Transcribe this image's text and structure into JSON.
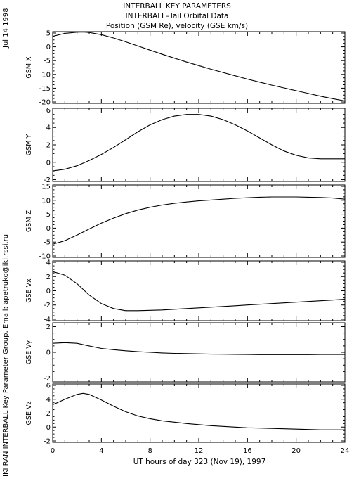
{
  "title_lines": [
    "INTERBALL KEY PARAMETERS",
    "INTERBALL–Tail Orbital Data",
    "Position (GSM Re), velocity (GSE km/s)"
  ],
  "side_date": "Jul 14 1998",
  "side_credit": "IKI RAN INTERBALL Key Parameter Group, Email: apetruko@iki.rssi.ru",
  "chart_data": {
    "type": "line",
    "xlabel": "UT hours of day 323 (Nov 19), 1997",
    "xlim": [
      0,
      24
    ],
    "x_ticks": [
      0,
      4,
      8,
      12,
      16,
      20,
      24
    ],
    "panels": [
      {
        "ylabel": "GSM X",
        "ylim": [
          -20.5,
          5.5
        ],
        "y_ticks": [
          5,
          0,
          -5,
          -10,
          -15,
          -20
        ],
        "series": [
          {
            "x": [
              0,
              1,
              2,
              2.5,
              3,
              4,
              5,
              6,
              7,
              8,
              9,
              10,
              11,
              12,
              13,
              14,
              15,
              16,
              17,
              18,
              19,
              20,
              21,
              22,
              23,
              24
            ],
            "y": [
              3.8,
              4.9,
              5.3,
              5.35,
              5.2,
              4.4,
              3.2,
              1.8,
              0.3,
              -1.2,
              -2.7,
              -4.1,
              -5.5,
              -6.8,
              -8.1,
              -9.3,
              -10.5,
              -11.7,
              -12.8,
              -13.9,
              -14.9,
              -15.9,
              -16.9,
              -17.9,
              -18.8,
              -19.6
            ]
          }
        ]
      },
      {
        "ylabel": "GSM Y",
        "ylim": [
          -2.2,
          6.2
        ],
        "y_ticks": [
          6,
          4,
          2,
          0,
          -2
        ],
        "series": [
          {
            "x": [
              0,
              1,
              2,
              3,
              4,
              5,
              6,
              7,
              8,
              9,
              10,
              11,
              12,
              13,
              14,
              15,
              16,
              17,
              18,
              19,
              20,
              21,
              22,
              23,
              24
            ],
            "y": [
              -1.0,
              -0.8,
              -0.4,
              0.2,
              0.9,
              1.7,
              2.6,
              3.5,
              4.3,
              4.9,
              5.3,
              5.5,
              5.5,
              5.3,
              4.9,
              4.3,
              3.6,
              2.8,
              2.0,
              1.3,
              0.8,
              0.5,
              0.4,
              0.4,
              0.4
            ]
          }
        ]
      },
      {
        "ylabel": "GSM Z",
        "ylim": [
          -10.5,
          15.5
        ],
        "y_ticks": [
          15,
          10,
          5,
          0,
          -5,
          -10
        ],
        "series": [
          {
            "x": [
              0,
              1,
              2,
              3,
              4,
              5,
              6,
              7,
              8,
              9,
              10,
              11,
              12,
              13,
              14,
              15,
              16,
              17,
              18,
              19,
              20,
              21,
              22,
              23,
              24
            ],
            "y": [
              -5.8,
              -4.5,
              -2.5,
              -0.3,
              1.8,
              3.6,
              5.2,
              6.5,
              7.5,
              8.3,
              8.9,
              9.4,
              9.8,
              10.1,
              10.4,
              10.7,
              10.9,
              11.1,
              11.2,
              11.2,
              11.2,
              11.1,
              11.0,
              10.8,
              10.4
            ]
          }
        ]
      },
      {
        "ylabel": "GSE Vx",
        "ylim": [
          -4.2,
          4.2
        ],
        "y_ticks": [
          4,
          2,
          0,
          -2,
          -4
        ],
        "series": [
          {
            "x": [
              0,
              1,
              2,
              3,
              4,
              5,
              6,
              7,
              8,
              9,
              10,
              11,
              12,
              13,
              14,
              15,
              16,
              17,
              18,
              19,
              20,
              21,
              22,
              23,
              24
            ],
            "y": [
              2.7,
              2.2,
              1.0,
              -0.6,
              -1.8,
              -2.5,
              -2.8,
              -2.8,
              -2.75,
              -2.7,
              -2.6,
              -2.5,
              -2.4,
              -2.3,
              -2.2,
              -2.1,
              -2.0,
              -1.9,
              -1.8,
              -1.7,
              -1.6,
              -1.5,
              -1.4,
              -1.3,
              -1.2
            ]
          }
        ]
      },
      {
        "ylabel": "GSE Vy",
        "ylim": [
          -2.3,
          2.3
        ],
        "y_ticks": [
          2,
          0,
          -2
        ],
        "series": [
          {
            "x": [
              0,
              1,
              2,
              3,
              4,
              5,
              6,
              7,
              8,
              9,
              10,
              11,
              12,
              13,
              14,
              15,
              16,
              17,
              18,
              19,
              20,
              21,
              22,
              23,
              24
            ],
            "y": [
              0.7,
              0.75,
              0.7,
              0.5,
              0.3,
              0.2,
              0.12,
              0.05,
              0.0,
              -0.05,
              -0.08,
              -0.1,
              -0.12,
              -0.14,
              -0.15,
              -0.16,
              -0.17,
              -0.18,
              -0.18,
              -0.18,
              -0.18,
              -0.18,
              -0.17,
              -0.17,
              -0.17
            ]
          }
        ]
      },
      {
        "ylabel": "GSE Vz",
        "ylim": [
          -2.2,
          6.2
        ],
        "y_ticks": [
          6,
          4,
          2,
          0,
          -2
        ],
        "series": [
          {
            "x": [
              0,
              1,
              2,
              2.5,
              3,
              4,
              5,
              6,
              7,
              8,
              9,
              10,
              11,
              12,
              13,
              14,
              15,
              16,
              17,
              18,
              19,
              20,
              21,
              22,
              23,
              24
            ],
            "y": [
              3.2,
              4.0,
              4.7,
              4.85,
              4.7,
              3.9,
              3.0,
              2.2,
              1.6,
              1.2,
              0.9,
              0.7,
              0.5,
              0.35,
              0.2,
              0.1,
              0.0,
              -0.1,
              -0.15,
              -0.2,
              -0.25,
              -0.3,
              -0.35,
              -0.4,
              -0.4,
              -0.4
            ]
          }
        ]
      }
    ]
  }
}
